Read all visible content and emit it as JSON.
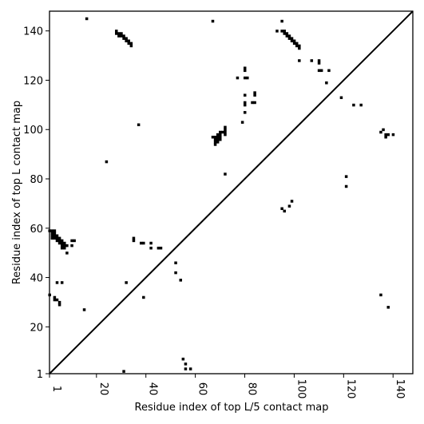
{
  "chart_data": {
    "type": "heatmap",
    "title": "",
    "xlabel": "Residue index of top L/5 contact map",
    "ylabel": "Residue index of top L contact map",
    "xlim": [
      1,
      148
    ],
    "ylim": [
      1,
      148
    ],
    "x_ticks": [
      1,
      20,
      40,
      60,
      80,
      100,
      120,
      140
    ],
    "y_ticks": [
      1,
      20,
      40,
      60,
      80,
      100,
      120,
      140
    ],
    "diagonal": true,
    "cell_color": "#000000",
    "background": "#ffffff",
    "upper_triangle_contacts": [
      [
        16,
        145
      ],
      [
        67,
        144
      ],
      [
        95,
        144
      ],
      [
        28,
        139
      ],
      [
        28,
        140
      ],
      [
        29,
        138
      ],
      [
        29,
        139
      ],
      [
        30,
        138
      ],
      [
        30,
        139
      ],
      [
        31,
        137
      ],
      [
        31,
        138
      ],
      [
        32,
        136
      ],
      [
        32,
        137
      ],
      [
        33,
        135
      ],
      [
        33,
        136
      ],
      [
        34,
        134
      ],
      [
        34,
        135
      ],
      [
        93,
        140
      ],
      [
        95,
        140
      ],
      [
        96,
        139
      ],
      [
        96,
        140
      ],
      [
        97,
        138
      ],
      [
        97,
        139
      ],
      [
        98,
        137
      ],
      [
        98,
        138
      ],
      [
        99,
        136
      ],
      [
        99,
        137
      ],
      [
        100,
        135
      ],
      [
        100,
        136
      ],
      [
        101,
        134
      ],
      [
        101,
        135
      ],
      [
        102,
        133
      ],
      [
        102,
        134
      ],
      [
        102,
        128
      ],
      [
        107,
        128
      ],
      [
        110,
        127
      ],
      [
        110,
        128
      ],
      [
        110,
        124
      ],
      [
        111,
        124
      ],
      [
        114,
        124
      ],
      [
        113,
        119
      ],
      [
        80,
        125
      ],
      [
        80,
        124
      ],
      [
        77,
        121
      ],
      [
        80,
        121
      ],
      [
        81,
        121
      ],
      [
        84,
        115
      ],
      [
        84,
        114
      ],
      [
        80,
        114
      ],
      [
        83,
        111
      ],
      [
        84,
        111
      ],
      [
        80,
        111
      ],
      [
        80,
        110
      ],
      [
        80,
        107
      ],
      [
        79,
        103
      ],
      [
        119,
        113
      ],
      [
        124,
        110
      ],
      [
        127,
        110
      ],
      [
        37,
        102
      ],
      [
        72,
        101
      ],
      [
        72,
        100
      ],
      [
        70,
        99
      ],
      [
        71,
        99
      ],
      [
        72,
        99
      ],
      [
        69,
        98
      ],
      [
        70,
        98
      ],
      [
        72,
        98
      ],
      [
        67,
        97
      ],
      [
        68,
        97
      ],
      [
        69,
        97
      ],
      [
        70,
        97
      ],
      [
        68,
        96
      ],
      [
        69,
        96
      ],
      [
        70,
        96
      ],
      [
        68,
        95
      ],
      [
        69,
        95
      ],
      [
        68,
        94
      ],
      [
        135,
        99
      ],
      [
        136,
        100
      ],
      [
        137,
        98
      ],
      [
        137,
        97
      ],
      [
        138,
        98
      ],
      [
        140,
        98
      ],
      [
        24,
        87
      ],
      [
        72,
        82
      ]
    ],
    "lower_triangle_contacts": [
      [
        121,
        81
      ],
      [
        121,
        77
      ],
      [
        99,
        71
      ],
      [
        98,
        69
      ],
      [
        95,
        68
      ],
      [
        96,
        67
      ],
      [
        1,
        59
      ],
      [
        2,
        59
      ],
      [
        3,
        59
      ],
      [
        2,
        58
      ],
      [
        3,
        58
      ],
      [
        2,
        57
      ],
      [
        3,
        57
      ],
      [
        4,
        57
      ],
      [
        2,
        56
      ],
      [
        3,
        56
      ],
      [
        4,
        56
      ],
      [
        5,
        56
      ],
      [
        4,
        55
      ],
      [
        5,
        55
      ],
      [
        6,
        55
      ],
      [
        5,
        54
      ],
      [
        6,
        54
      ],
      [
        7,
        54
      ],
      [
        10,
        55
      ],
      [
        11,
        55
      ],
      [
        6,
        53
      ],
      [
        7,
        53
      ],
      [
        8,
        53
      ],
      [
        10,
        53
      ],
      [
        6,
        52
      ],
      [
        7,
        52
      ],
      [
        8,
        50
      ],
      [
        35,
        56
      ],
      [
        35,
        55
      ],
      [
        38,
        54
      ],
      [
        39,
        54
      ],
      [
        42,
        54
      ],
      [
        42,
        52
      ],
      [
        45,
        52
      ],
      [
        46,
        52
      ],
      [
        52,
        46
      ],
      [
        52,
        42
      ],
      [
        54,
        39
      ],
      [
        32,
        38
      ],
      [
        4,
        38
      ],
      [
        6,
        38
      ],
      [
        39,
        32
      ],
      [
        1,
        33
      ],
      [
        3,
        32
      ],
      [
        3,
        31
      ],
      [
        4,
        31
      ],
      [
        5,
        30
      ],
      [
        5,
        29
      ],
      [
        15,
        27
      ],
      [
        135,
        33
      ],
      [
        138,
        28
      ],
      [
        55,
        7
      ],
      [
        56,
        5
      ],
      [
        56,
        3
      ],
      [
        58,
        3
      ],
      [
        31,
        2
      ]
    ]
  }
}
